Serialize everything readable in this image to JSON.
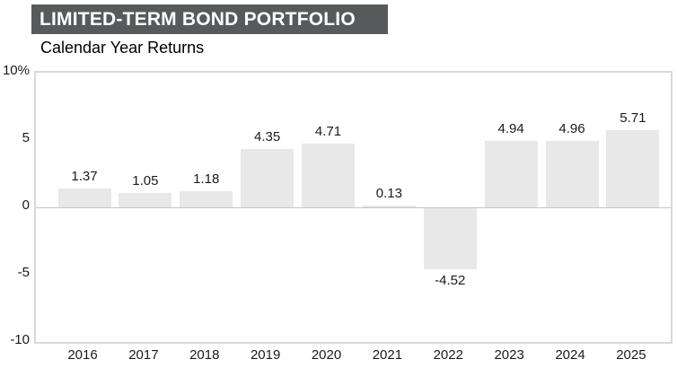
{
  "header": {
    "title": "LIMITED-TERM BOND PORTFOLIO",
    "subtitle": "Calendar Year Returns"
  },
  "colors": {
    "title_bg": "#58595b",
    "title_text": "#ffffff",
    "bar_fill": "#e8e8e8",
    "plot_border": "#d9d9d9",
    "zero_line": "#c6c6c6",
    "label_text": "#1a1a1a"
  },
  "chart_data": {
    "type": "bar",
    "title": "LIMITED-TERM BOND PORTFOLIO",
    "subtitle": "Calendar Year Returns",
    "categories": [
      "2016",
      "2017",
      "2018",
      "2019",
      "2020",
      "2021",
      "2022",
      "2023",
      "2024",
      "2025"
    ],
    "values": [
      1.37,
      1.05,
      1.18,
      4.35,
      4.71,
      0.13,
      -4.52,
      4.94,
      4.96,
      5.71
    ],
    "value_labels": [
      "1.37",
      "1.05",
      "1.18",
      "4.35",
      "4.71",
      "0.13",
      "-4.52",
      "4.94",
      "4.96",
      "5.71"
    ],
    "xlabel": "",
    "ylabel": "",
    "ylim": [
      -10,
      10
    ],
    "yticks": [
      {
        "value": 10,
        "label": "10%"
      },
      {
        "value": 5,
        "label": "5"
      },
      {
        "value": 0,
        "label": "0"
      },
      {
        "value": -5,
        "label": "-5"
      },
      {
        "value": -10,
        "label": "-10"
      }
    ],
    "grid": false,
    "legend": false,
    "bar_labels_position": "outside-end"
  }
}
